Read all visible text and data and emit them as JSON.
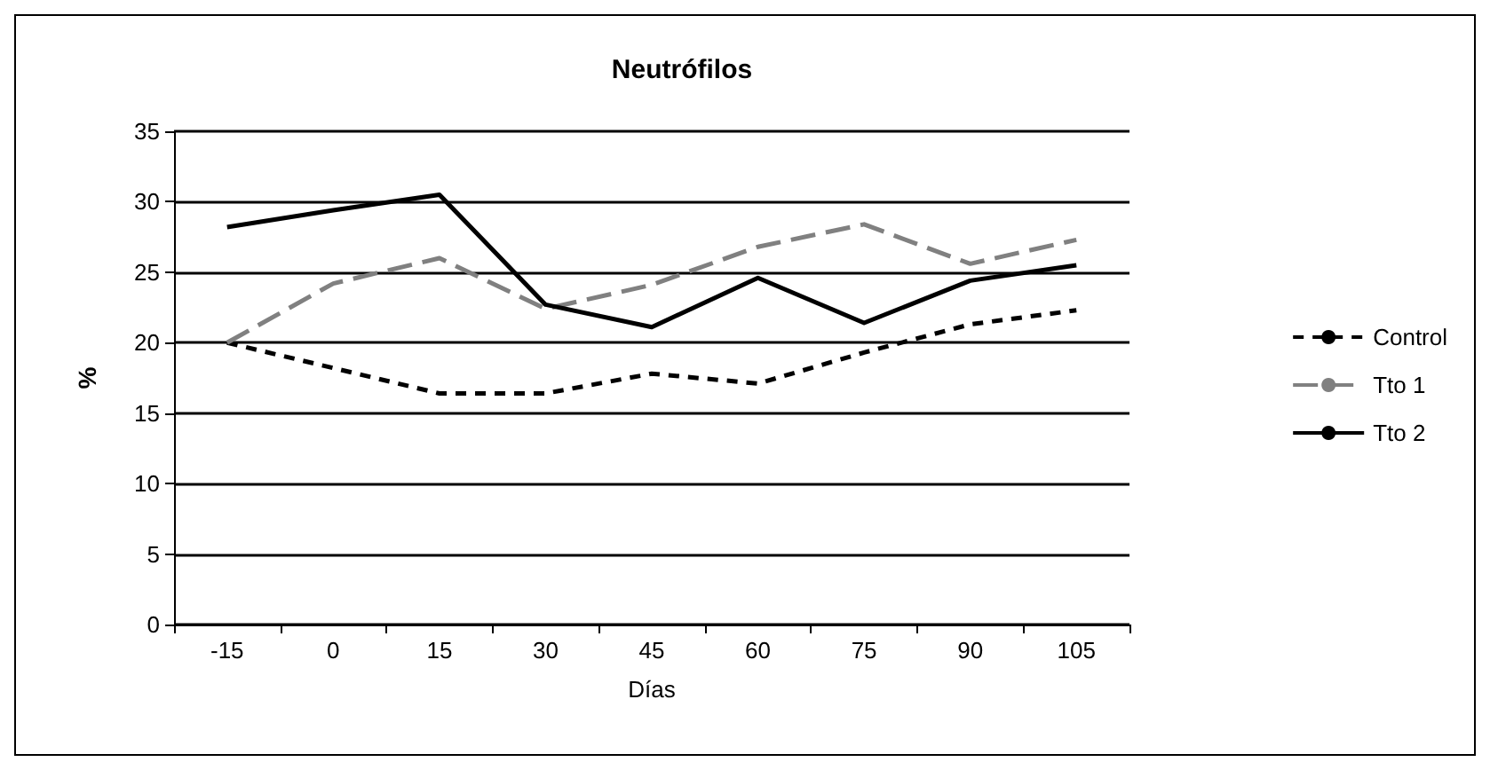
{
  "chart_data": {
    "type": "line",
    "title": "Neutrófilos",
    "xlabel": "Días",
    "ylabel": "%",
    "categories": [
      "-15",
      "0",
      "15",
      "30",
      "45",
      "60",
      "75",
      "90",
      "105"
    ],
    "ylim": [
      0,
      35
    ],
    "yticks": [
      0,
      5,
      10,
      15,
      20,
      25,
      30,
      35
    ],
    "grid": "y",
    "legend": "right",
    "marker": "none",
    "series": [
      {
        "name": "Control",
        "color": "#000000",
        "line_style": "dashed",
        "values": [
          20,
          18.2,
          16.4,
          16.4,
          17.8,
          17.1,
          19.3,
          21.3,
          22.3
        ]
      },
      {
        "name": "Tto 1",
        "color": "#808080",
        "line_style": "long_dashed",
        "values": [
          20,
          24.2,
          26,
          22.4,
          24.1,
          26.8,
          28.4,
          25.6,
          27.3
        ]
      },
      {
        "name": "Tto 2",
        "color": "#000000",
        "line_style": "solid",
        "values": [
          28.2,
          29.4,
          30.5,
          22.7,
          21.1,
          24.6,
          21.4,
          24.4,
          25.5
        ]
      }
    ]
  }
}
